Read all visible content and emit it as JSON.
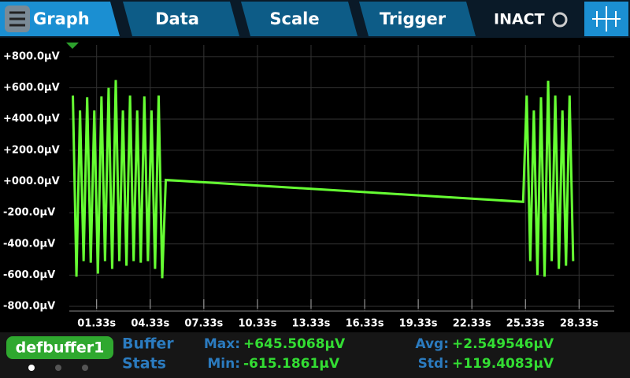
{
  "tabs": {
    "items": [
      "Graph",
      "Data",
      "Scale",
      "Trigger"
    ],
    "status": "INACT"
  },
  "chart_data": {
    "type": "line",
    "xlim": [
      -0.2,
      30.3
    ],
    "ylim": [
      -830,
      875
    ],
    "xticks": [
      {
        "value": 1.33,
        "label": "01.33s"
      },
      {
        "value": 4.33,
        "label": "04.33s"
      },
      {
        "value": 7.33,
        "label": "07.33s"
      },
      {
        "value": 10.33,
        "label": "10.33s"
      },
      {
        "value": 13.33,
        "label": "13.33s"
      },
      {
        "value": 16.33,
        "label": "16.33s"
      },
      {
        "value": 19.33,
        "label": "19.33s"
      },
      {
        "value": 22.33,
        "label": "22.33s"
      },
      {
        "value": 25.33,
        "label": "25.33s"
      },
      {
        "value": 28.33,
        "label": "28.33s"
      }
    ],
    "yticks": [
      {
        "value": 800,
        "label": "+800.0µV"
      },
      {
        "value": 600,
        "label": "+600.0µV"
      },
      {
        "value": 400,
        "label": "+400.0µV"
      },
      {
        "value": 200,
        "label": "+200.0µV"
      },
      {
        "value": 0,
        "label": "+000.0µV"
      },
      {
        "value": -200,
        "label": "-200.0µV"
      },
      {
        "value": -400,
        "label": "-400.0µV"
      },
      {
        "value": -600,
        "label": "-600.0µV"
      },
      {
        "value": -800,
        "label": "-800.0µV"
      }
    ],
    "grid": true,
    "series": [
      {
        "color": "#66ff33",
        "x": [
          0,
          0.2,
          0.4,
          0.6,
          0.8,
          1.0,
          1.2,
          1.4,
          1.6,
          1.8,
          2.0,
          2.2,
          2.4,
          2.6,
          2.8,
          3.0,
          3.2,
          3.4,
          3.6,
          3.8,
          4.0,
          4.2,
          4.4,
          4.6,
          4.8,
          5.0,
          5.2,
          25.2,
          25.4,
          25.6,
          25.8,
          26.0,
          26.2,
          26.4,
          26.6,
          26.8,
          27.0,
          27.2,
          27.4,
          27.6,
          27.8,
          28.0
        ],
        "values": [
          550,
          -610,
          455,
          -510,
          540,
          -520,
          455,
          -590,
          545,
          -510,
          600,
          -560,
          650,
          -510,
          455,
          -540,
          550,
          -510,
          455,
          -520,
          545,
          -510,
          455,
          -560,
          550,
          -620,
          10,
          -130,
          550,
          -510,
          455,
          -600,
          540,
          -610,
          645,
          -510,
          550,
          -560,
          455,
          -540,
          550,
          -510
        ]
      }
    ]
  },
  "footer": {
    "buffer": "defbuffer1",
    "heading": [
      "Buffer",
      "Stats"
    ],
    "stats": [
      {
        "label": "Max:",
        "value": "+645.5068µV"
      },
      {
        "label": "Min:",
        "value": "-615.1861µV"
      },
      {
        "label": "Avg:",
        "value": "+2.549546µV"
      },
      {
        "label": "Std:",
        "value": "+119.4083µV"
      }
    ]
  }
}
